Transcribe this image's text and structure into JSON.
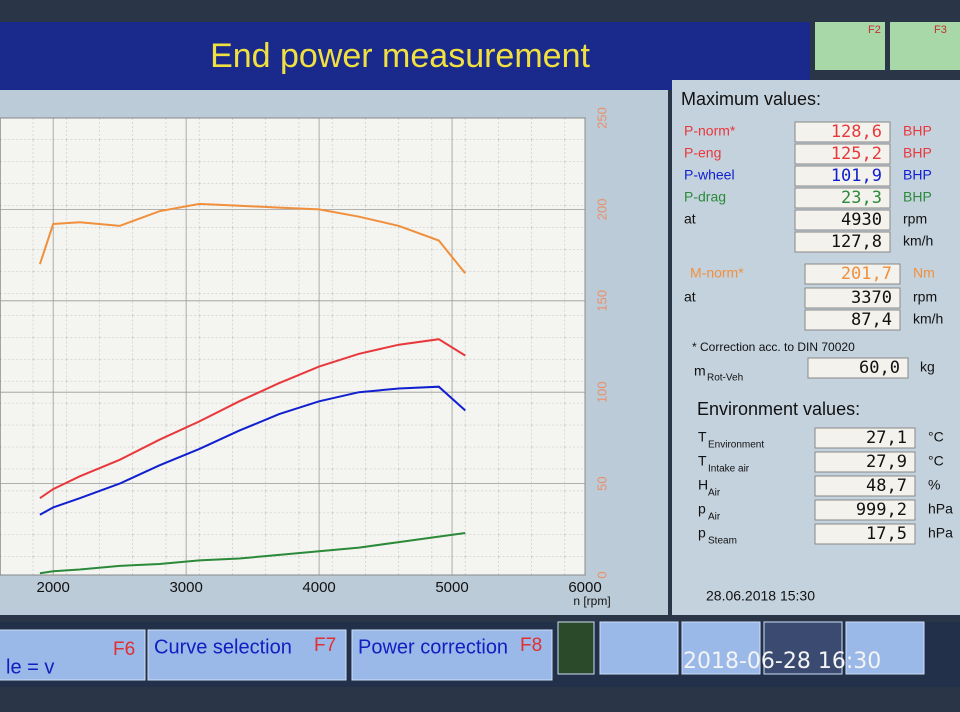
{
  "header": {
    "title": "End power measurement",
    "keys": [
      "F2",
      "F3"
    ]
  },
  "chart_data": {
    "type": "line",
    "x_label": "n [rpm]",
    "x": [
      1900,
      2000,
      2200,
      2500,
      2800,
      3100,
      3400,
      3700,
      4000,
      4300,
      4600,
      4900,
      5100
    ],
    "series": [
      {
        "name": "M-norm*",
        "color": "#f0903c",
        "values": [
          170,
          192,
          193,
          191,
          199,
          203,
          202,
          201,
          200,
          196,
          191,
          183,
          165
        ]
      },
      {
        "name": "P-norm*",
        "color": "#e8383c",
        "values": [
          42,
          47,
          54,
          63,
          74,
          84,
          95,
          105,
          114,
          121,
          126,
          129,
          120
        ]
      },
      {
        "name": "P-wheel",
        "color": "#1020d0",
        "values": [
          33,
          37,
          42,
          50,
          60,
          69,
          79,
          88,
          95,
          100,
          102,
          103,
          90
        ]
      },
      {
        "name": "P-drag",
        "color": "#2a8a3a",
        "values": [
          1,
          2,
          3,
          5,
          6,
          8,
          9,
          11,
          13,
          15,
          18,
          21,
          23
        ]
      }
    ],
    "xlim": [
      1600,
      6000
    ],
    "xticks": [
      2000,
      3000,
      4000,
      5000,
      6000
    ],
    "ylim": [
      0,
      250
    ],
    "yticks": [
      0,
      50,
      100,
      150,
      200,
      250
    ],
    "grid": true
  },
  "max_panel": {
    "title": "Maximum values:",
    "rows": [
      {
        "label": "P-norm*",
        "value": "128,6",
        "unit": "BHP",
        "color": "#e8383c"
      },
      {
        "label": "P-eng",
        "value": "125,2",
        "unit": "BHP",
        "color": "#e8383c"
      },
      {
        "label": "P-wheel",
        "value": "101,9",
        "unit": "BHP",
        "color": "#1020d0"
      },
      {
        "label": "P-drag",
        "value": "23,3",
        "unit": "BHP",
        "color": "#2a8a3a"
      },
      {
        "label": "at",
        "value": "4930",
        "unit": "rpm",
        "color": "#111111"
      },
      {
        "label": null,
        "value": "127,8",
        "unit": "km/h",
        "color": "#111111"
      },
      {
        "label": "M-norm*",
        "value": "201,7",
        "unit": "Nm",
        "color": "#f0903c"
      },
      {
        "label": "at",
        "value": "3370",
        "unit": "rpm",
        "color": "#111111"
      },
      {
        "label": null,
        "value": "87,4",
        "unit": "km/h",
        "color": "#111111"
      }
    ],
    "note": "* Correction acc. to DIN 70020",
    "mass": {
      "symbol": "m",
      "sub": "Rot-Veh",
      "value": "60,0",
      "unit": "kg"
    }
  },
  "env_panel": {
    "title": "Environment values:",
    "rows": [
      {
        "symbol": "T",
        "sub": "Environment",
        "value": "27,1",
        "unit": "°C"
      },
      {
        "symbol": "T",
        "sub": "Intake air",
        "value": "27,9",
        "unit": "°C"
      },
      {
        "symbol": "H",
        "sub": "Air",
        "value": "48,7",
        "unit": "%"
      },
      {
        "symbol": "p",
        "sub": "Air",
        "value": "999,2",
        "unit": "hPa"
      },
      {
        "symbol": "p",
        "sub": "Steam",
        "value": "17,5",
        "unit": "hPa"
      }
    ],
    "datetime": "28.06.2018  15:30"
  },
  "footer": {
    "buttons": [
      {
        "label": "le = v",
        "key": "F6"
      },
      {
        "label": "Curve selection",
        "key": "F7"
      },
      {
        "label": "Power correction",
        "key": "F8"
      }
    ],
    "photo_timestamp": "2018-06-28  16:30"
  }
}
